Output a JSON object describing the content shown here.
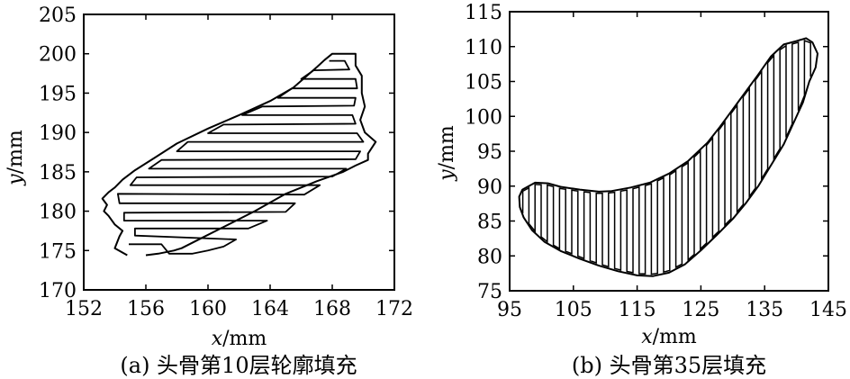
{
  "chart_data": [
    {
      "type": "line",
      "caption": "(a) 头骨第10层轮廓填充",
      "xlabel_var": "x",
      "xlabel_unit": "/mm",
      "ylabel_var": "y",
      "ylabel_unit": "/mm",
      "xlim": [
        152,
        172
      ],
      "ylim": [
        170,
        205
      ],
      "xticks": [
        152,
        156,
        160,
        164,
        168,
        172
      ],
      "yticks": [
        170,
        175,
        180,
        185,
        190,
        195,
        200,
        205
      ],
      "grid": false,
      "fill": "horizontal-zigzag",
      "contour": [
        [
          154.8,
          174.4
        ],
        [
          154.0,
          175.3
        ],
        [
          154.3,
          176.8
        ],
        [
          154.5,
          177.5
        ],
        [
          154.0,
          178.3
        ],
        [
          153.6,
          179.4
        ],
        [
          153.3,
          180.0
        ],
        [
          153.5,
          180.8
        ],
        [
          153.2,
          181.6
        ],
        [
          153.6,
          182.4
        ],
        [
          154.0,
          183.0
        ],
        [
          154.5,
          184.0
        ],
        [
          155.3,
          185.2
        ],
        [
          156.5,
          186.7
        ],
        [
          158.0,
          188.6
        ],
        [
          160.0,
          190.5
        ],
        [
          162.0,
          192.2
        ],
        [
          164.0,
          194.0
        ],
        [
          165.5,
          195.7
        ],
        [
          167.0,
          198.3
        ],
        [
          167.5,
          199.2
        ],
        [
          168.0,
          200.0
        ],
        [
          169.5,
          200.0
        ],
        [
          169.5,
          198.5
        ],
        [
          169.9,
          197.2
        ],
        [
          169.9,
          195.0
        ],
        [
          170.1,
          193.3
        ],
        [
          169.8,
          191.6
        ],
        [
          170.1,
          190.0
        ],
        [
          170.8,
          188.8
        ],
        [
          170.3,
          187.3
        ],
        [
          170.3,
          186.5
        ],
        [
          169.5,
          185.8
        ],
        [
          168.7,
          185.0
        ],
        [
          167.0,
          183.8
        ],
        [
          165.0,
          182.2
        ],
        [
          163.0,
          180.0
        ],
        [
          161.0,
          178.0
        ],
        [
          159.5,
          176.5
        ],
        [
          158.3,
          175.3
        ],
        [
          157.8,
          175.0
        ],
        [
          156.8,
          174.6
        ],
        [
          156.0,
          174.4
        ]
      ],
      "inner_path": [
        [
          154.9,
          175.8
        ],
        [
          157.0,
          175.8
        ],
        [
          157.5,
          174.6
        ],
        [
          159.0,
          174.6
        ],
        [
          160.0,
          175.0
        ],
        [
          161.0,
          175.5
        ],
        [
          161.8,
          176.4
        ],
        [
          155.3,
          176.9
        ],
        [
          155.3,
          177.8
        ],
        [
          162.6,
          177.8
        ],
        [
          163.8,
          178.8
        ],
        [
          154.6,
          178.8
        ],
        [
          154.6,
          179.8
        ],
        [
          165.0,
          179.9
        ],
        [
          165.6,
          181.0
        ],
        [
          154.3,
          181.0
        ],
        [
          154.2,
          182.2
        ],
        [
          166.2,
          182.1
        ],
        [
          167.2,
          183.3
        ],
        [
          155.0,
          183.3
        ],
        [
          155.4,
          184.3
        ],
        [
          168.0,
          184.4
        ],
        [
          168.9,
          185.4
        ],
        [
          156.2,
          185.4
        ],
        [
          157.0,
          186.5
        ],
        [
          169.5,
          186.6
        ],
        [
          169.8,
          187.6
        ],
        [
          158.0,
          187.6
        ],
        [
          158.7,
          188.8
        ],
        [
          170.0,
          188.8
        ],
        [
          169.6,
          189.9
        ],
        [
          160.0,
          189.9
        ],
        [
          161.0,
          191.0
        ],
        [
          169.5,
          191.1
        ],
        [
          169.3,
          192.2
        ],
        [
          162.2,
          192.2
        ],
        [
          163.5,
          193.3
        ],
        [
          169.4,
          193.4
        ],
        [
          169.5,
          194.4
        ],
        [
          164.5,
          194.4
        ],
        [
          165.4,
          195.6
        ],
        [
          169.6,
          195.6
        ],
        [
          169.5,
          196.8
        ],
        [
          166.0,
          196.8
        ],
        [
          166.8,
          197.9
        ],
        [
          169.1,
          198.0
        ],
        [
          168.8,
          199.1
        ],
        [
          167.8,
          199.1
        ]
      ]
    },
    {
      "type": "line",
      "caption": "(b) 头骨第35层填充",
      "xlabel_var": "x",
      "xlabel_unit": "/mm",
      "ylabel_var": "y",
      "ylabel_unit": "/mm",
      "xlim": [
        95,
        145
      ],
      "ylim": [
        75,
        115
      ],
      "xticks": [
        95,
        105,
        115,
        125,
        135,
        145
      ],
      "yticks": [
        75,
        80,
        85,
        90,
        95,
        100,
        105,
        110,
        115
      ],
      "grid": false,
      "fill": "vertical-zigzag",
      "contour": [
        [
          96.5,
          88.5
        ],
        [
          97.0,
          89.5
        ],
        [
          99.0,
          90.5
        ],
        [
          101.0,
          90.4
        ],
        [
          103.0,
          89.9
        ],
        [
          106.0,
          89.5
        ],
        [
          109.0,
          89.2
        ],
        [
          111.0,
          89.3
        ],
        [
          114.0,
          89.8
        ],
        [
          117.0,
          90.5
        ],
        [
          120.0,
          91.8
        ],
        [
          123.0,
          93.6
        ],
        [
          126.0,
          96.2
        ],
        [
          128.0,
          98.5
        ],
        [
          130.0,
          101.0
        ],
        [
          132.0,
          103.5
        ],
        [
          134.0,
          106.0
        ],
        [
          136.0,
          108.6
        ],
        [
          138.0,
          110.3
        ],
        [
          140.0,
          110.8
        ],
        [
          141.5,
          111.2
        ],
        [
          142.5,
          110.6
        ],
        [
          143.3,
          109.0
        ],
        [
          143.0,
          107.0
        ],
        [
          142.0,
          105.0
        ],
        [
          141.0,
          102.0
        ],
        [
          139.5,
          99.0
        ],
        [
          138.0,
          96.0
        ],
        [
          136.0,
          93.0
        ],
        [
          134.0,
          90.0
        ],
        [
          132.0,
          87.5
        ],
        [
          130.0,
          85.3
        ],
        [
          127.5,
          83.0
        ],
        [
          125.0,
          80.8
        ],
        [
          122.5,
          78.8
        ],
        [
          120.0,
          77.6
        ],
        [
          117.5,
          77.1
        ],
        [
          115.0,
          77.2
        ],
        [
          112.0,
          77.8
        ],
        [
          109.0,
          78.6
        ],
        [
          106.0,
          79.6
        ],
        [
          103.0,
          80.7
        ],
        [
          100.5,
          82.0
        ],
        [
          98.5,
          83.7
        ],
        [
          97.2,
          85.5
        ],
        [
          96.6,
          87.0
        ]
      ]
    }
  ]
}
